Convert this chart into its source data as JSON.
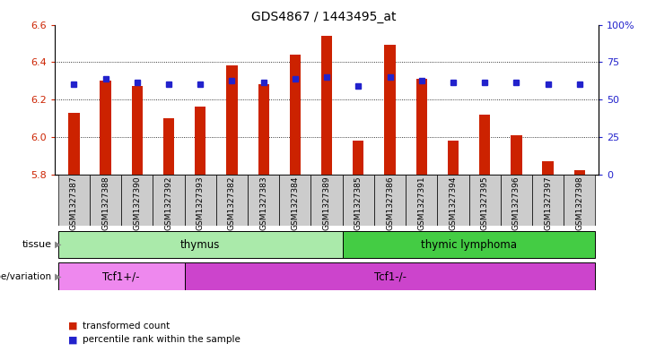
{
  "title": "GDS4867 / 1443495_at",
  "samples": [
    "GSM1327387",
    "GSM1327388",
    "GSM1327390",
    "GSM1327392",
    "GSM1327393",
    "GSM1327382",
    "GSM1327383",
    "GSM1327384",
    "GSM1327389",
    "GSM1327385",
    "GSM1327386",
    "GSM1327391",
    "GSM1327394",
    "GSM1327395",
    "GSM1327396",
    "GSM1327397",
    "GSM1327398"
  ],
  "bar_values": [
    6.13,
    6.3,
    6.27,
    6.1,
    6.16,
    6.38,
    6.28,
    6.44,
    6.54,
    5.98,
    6.49,
    6.31,
    5.98,
    6.12,
    6.01,
    5.87,
    5.82
  ],
  "percentile_values": [
    6.28,
    6.31,
    6.29,
    6.28,
    6.28,
    6.3,
    6.29,
    6.31,
    6.32,
    6.27,
    6.32,
    6.3,
    6.29,
    6.29,
    6.29,
    6.28,
    6.28
  ],
  "bar_base": 5.8,
  "y_min": 5.8,
  "y_max": 6.6,
  "y_ticks": [
    5.8,
    6.0,
    6.2,
    6.4,
    6.6
  ],
  "right_y_ticks": [
    "0",
    "25",
    "50",
    "75",
    "100%"
  ],
  "right_y_tick_positions": [
    5.8,
    6.0,
    6.2,
    6.4,
    6.6
  ],
  "tissue_groups": [
    {
      "label": "thymus",
      "start": 0,
      "end": 9,
      "color": "#AAEAAA"
    },
    {
      "label": "thymic lymphoma",
      "start": 9,
      "end": 17,
      "color": "#44CC44"
    }
  ],
  "genotype_groups": [
    {
      "label": "Tcf1+/-",
      "start": 0,
      "end": 4,
      "color": "#EE88EE"
    },
    {
      "label": "Tcf1-/-",
      "start": 4,
      "end": 17,
      "color": "#CC44CC"
    }
  ],
  "bar_color": "#CC2200",
  "dot_color": "#2222CC",
  "bar_width": 0.35,
  "tick_label_color_left": "#CC2200",
  "tick_label_color_right": "#2222CC",
  "legend_items": [
    "transformed count",
    "percentile rank within the sample"
  ],
  "sample_bg_color": "#CCCCCC",
  "left_label_color": "#555555"
}
